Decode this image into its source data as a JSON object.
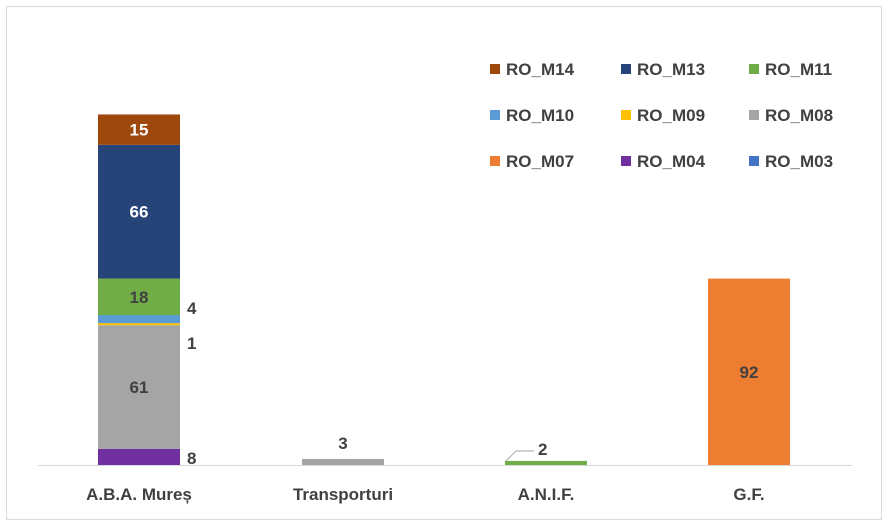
{
  "chart_data": {
    "type": "bar",
    "stacked": true,
    "categories": [
      "A.B.A. Mureș",
      "Transporturi",
      "A.N.I.F.",
      "G.F."
    ],
    "ylim": [
      0,
      190
    ],
    "series": [
      {
        "name": "RO_M03",
        "color": "#4472C4",
        "values": [
          0,
          0,
          0,
          0
        ]
      },
      {
        "name": "RO_M04",
        "color": "#7030A0",
        "values": [
          8,
          0,
          0,
          0
        ]
      },
      {
        "name": "RO_M07",
        "color": "#ED7D31",
        "values": [
          0,
          0,
          0,
          92
        ]
      },
      {
        "name": "RO_M08",
        "color": "#A5A5A5",
        "values": [
          61,
          3,
          0,
          0
        ]
      },
      {
        "name": "RO_M09",
        "color": "#FFC000",
        "values": [
          1,
          0,
          0,
          0
        ]
      },
      {
        "name": "RO_M10",
        "color": "#5B9BD5",
        "values": [
          4,
          0,
          0,
          0
        ]
      },
      {
        "name": "RO_M11",
        "color": "#70AD47",
        "values": [
          18,
          0,
          2,
          0
        ]
      },
      {
        "name": "RO_M13",
        "color": "#264478",
        "values": [
          66,
          0,
          0,
          0
        ]
      },
      {
        "name": "RO_M14",
        "color": "#9E480E",
        "values": [
          15,
          0,
          0,
          0
        ]
      }
    ],
    "legend_order": [
      "RO_M14",
      "RO_M13",
      "RO_M11",
      "RO_M10",
      "RO_M09",
      "RO_M08",
      "RO_M07",
      "RO_M04",
      "RO_M03"
    ],
    "legend_position": "top-right",
    "grid": false
  }
}
